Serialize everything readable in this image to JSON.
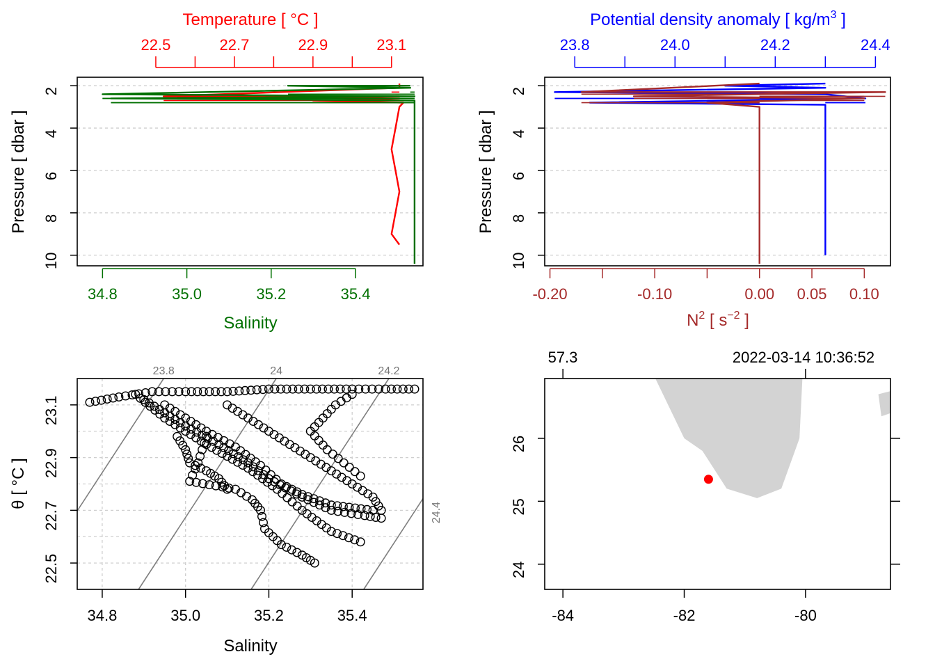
{
  "colors": {
    "temperature": "#ff0000",
    "salinity": "#007000",
    "density": "#0000ff",
    "n2": "#a52a2a",
    "isopycnal": "#7f7f7f",
    "land": "#d3d3d3",
    "station": "#ff0000"
  },
  "chart_data": [
    {
      "type": "line",
      "panel": "profile-TS",
      "title": "",
      "ylabel": "Pressure [ dbar ]",
      "ylim": [
        10.5,
        1.6
      ],
      "yticks": [
        "2",
        "4",
        "6",
        "8",
        "10"
      ],
      "top_axis": {
        "label": "Temperature [ °C ]",
        "range": [
          22.3,
          23.18
        ],
        "ticks": [
          "22.5",
          "22.7",
          "22.9",
          "23.1"
        ],
        "minor_ticks": [
          22.6,
          22.8,
          23.0
        ]
      },
      "bottom_axis": {
        "label": "Salinity",
        "range": [
          34.74,
          35.56
        ],
        "ticks": [
          "34.8",
          "35.0",
          "35.2",
          "35.4"
        ]
      },
      "series": [
        {
          "name": "Temperature",
          "axis": "top",
          "color": "temperature",
          "points": [
            [
              23.12,
              1.9
            ],
            [
              23.12,
              2.1
            ],
            [
              22.52,
              2.5
            ],
            [
              23.12,
              2.6
            ],
            [
              22.9,
              2.7
            ],
            [
              23.13,
              2.8
            ],
            [
              23.12,
              3.0
            ],
            [
              23.11,
              4.0
            ],
            [
              23.1,
              5.0
            ],
            [
              23.11,
              6.0
            ],
            [
              23.12,
              7.0
            ],
            [
              23.11,
              8.0
            ],
            [
              23.1,
              9.0
            ],
            [
              23.12,
              9.5
            ]
          ]
        },
        {
          "name": "Salinity",
          "axis": "bottom",
          "color": "salinity",
          "points": [
            [
              35.53,
              2.0
            ],
            [
              35.24,
              2.0
            ],
            [
              35.53,
              2.1
            ],
            [
              34.8,
              2.4
            ],
            [
              35.54,
              2.5
            ],
            [
              34.82,
              2.6
            ],
            [
              35.54,
              2.7
            ],
            [
              35.54,
              2.8
            ],
            [
              35.54,
              4.0
            ],
            [
              35.54,
              6.0
            ],
            [
              35.54,
              8.0
            ],
            [
              35.54,
              10.4
            ]
          ]
        }
      ]
    },
    {
      "type": "line",
      "panel": "profile-density-N2",
      "title": "",
      "ylabel": "Pressure [ dbar ]",
      "ylim": [
        10.5,
        1.6
      ],
      "yticks": [
        "2",
        "4",
        "6",
        "8",
        "10"
      ],
      "top_axis": {
        "label": "Potential density anomaly [ kg/m",
        "label_sup": "3",
        "label_end": " ]",
        "range": [
          23.74,
          24.43
        ],
        "ticks": [
          "23.8",
          "24.0",
          "24.2",
          "24.4"
        ],
        "minor_ticks": [
          23.9,
          24.1,
          24.3
        ]
      },
      "bottom_axis": {
        "label": "N",
        "label_sup": "2",
        "label_mid": " [ s",
        "label_sup2": "−2",
        "label_end": " ]",
        "range": [
          -0.205,
          0.125
        ],
        "ticks": [
          "-0.20",
          "-0.10",
          "0.00",
          "0.05",
          "0.10"
        ],
        "minor_ticks": [
          -0.15,
          -0.05
        ]
      },
      "series": [
        {
          "name": "Potential density anomaly",
          "axis": "top",
          "color": "density",
          "points": [
            [
              24.3,
              1.9
            ],
            [
              24.1,
              2.0
            ],
            [
              24.3,
              2.1
            ],
            [
              23.76,
              2.3
            ],
            [
              24.3,
              2.4
            ],
            [
              24.38,
              2.6
            ],
            [
              23.83,
              2.8
            ],
            [
              24.3,
              2.9
            ],
            [
              24.3,
              4.0
            ],
            [
              24.3,
              6.0
            ],
            [
              24.3,
              8.0
            ],
            [
              24.3,
              10.0
            ]
          ]
        },
        {
          "name": "N2",
          "axis": "bottom",
          "color": "n2",
          "points": [
            [
              0.0,
              1.9
            ],
            [
              -0.17,
              2.3
            ],
            [
              0.12,
              2.3
            ],
            [
              -0.12,
              2.5
            ],
            [
              0.1,
              2.6
            ],
            [
              -0.05,
              2.8
            ],
            [
              0.0,
              3.0
            ],
            [
              0.0,
              5.0
            ],
            [
              0.0,
              8.0
            ],
            [
              0.0,
              10.4
            ]
          ]
        }
      ]
    },
    {
      "type": "scatter",
      "panel": "TS-diagram",
      "title": "",
      "xlabel": "Salinity",
      "ylabel": "θ [ °C ]",
      "xlim": [
        34.74,
        35.57
      ],
      "ylim": [
        22.4,
        23.2
      ],
      "xticks": [
        "34.8",
        "35.0",
        "35.2",
        "35.4"
      ],
      "yticks": [
        "22.5",
        "22.7",
        "22.9",
        "23.1"
      ],
      "isopycnals": [
        {
          "label": "23.8",
          "sigma": 23.8
        },
        {
          "label": "24",
          "sigma": 24.0
        },
        {
          "label": "24.2",
          "sigma": 24.2
        },
        {
          "label": "24.4",
          "sigma": 24.4
        }
      ],
      "isopycnal_ref": {
        "S": 35.0,
        "T": 23.0,
        "sigma": 23.9,
        "dT_dS": 2.42,
        "d_sigma_dS": 0.74
      },
      "branches": [
        [
          [
            34.77,
            23.11
          ],
          [
            34.84,
            23.13
          ],
          [
            34.92,
            23.15
          ],
          [
            35.0,
            23.15
          ],
          [
            35.1,
            23.15
          ],
          [
            35.2,
            23.16
          ],
          [
            35.3,
            23.16
          ],
          [
            35.4,
            23.16
          ],
          [
            35.48,
            23.16
          ],
          [
            35.55,
            23.16
          ]
        ],
        [
          [
            34.88,
            23.14
          ],
          [
            34.95,
            23.05
          ],
          [
            35.05,
            22.95
          ],
          [
            35.15,
            22.86
          ],
          [
            35.22,
            22.78
          ],
          [
            35.28,
            22.7
          ],
          [
            35.35,
            22.62
          ],
          [
            35.42,
            22.58
          ]
        ],
        [
          [
            34.9,
            23.12
          ],
          [
            35.0,
            23.02
          ],
          [
            35.08,
            22.95
          ],
          [
            35.15,
            22.88
          ],
          [
            35.2,
            22.82
          ],
          [
            35.28,
            22.75
          ],
          [
            35.35,
            22.7
          ],
          [
            35.43,
            22.68
          ],
          [
            35.47,
            22.67
          ]
        ],
        [
          [
            34.95,
            23.1
          ],
          [
            35.05,
            23.0
          ],
          [
            35.12,
            22.94
          ],
          [
            35.18,
            22.87
          ],
          [
            35.23,
            22.8
          ],
          [
            35.28,
            22.76
          ],
          [
            35.35,
            22.72
          ],
          [
            35.45,
            22.7
          ]
        ],
        [
          [
            35.1,
            23.1
          ],
          [
            35.15,
            23.05
          ],
          [
            35.2,
            23.0
          ],
          [
            35.25,
            22.95
          ],
          [
            35.3,
            22.9
          ],
          [
            35.35,
            22.85
          ],
          [
            35.4,
            22.8
          ],
          [
            35.45,
            22.75
          ],
          [
            35.47,
            22.7
          ]
        ],
        [
          [
            35.05,
            22.98
          ],
          [
            35.03,
            22.88
          ],
          [
            35.01,
            22.81
          ],
          [
            35.12,
            22.78
          ],
          [
            35.16,
            22.74
          ],
          [
            35.18,
            22.7
          ],
          [
            35.19,
            22.63
          ],
          [
            35.23,
            22.57
          ],
          [
            35.28,
            22.53
          ],
          [
            35.31,
            22.5
          ]
        ],
        [
          [
            35.4,
            23.14
          ],
          [
            35.36,
            23.1
          ],
          [
            35.33,
            23.05
          ],
          [
            35.3,
            23.0
          ],
          [
            35.34,
            22.93
          ],
          [
            35.38,
            22.88
          ],
          [
            35.42,
            22.83
          ]
        ],
        [
          [
            34.98,
            22.98
          ],
          [
            35.0,
            22.93
          ],
          [
            35.01,
            22.88
          ],
          [
            35.05,
            22.85
          ],
          [
            35.08,
            22.82
          ],
          [
            35.1,
            22.78
          ]
        ]
      ]
    },
    {
      "type": "scatter",
      "panel": "map",
      "title": "",
      "top_labels": [
        "57.3",
        "2022-03-14 10:36:52"
      ],
      "xlim": [
        -84.3,
        -78.6
      ],
      "ylim": [
        23.6,
        26.95
      ],
      "xticks": [
        "-84",
        "-82",
        "-80"
      ],
      "yticks": [
        "24",
        "25",
        "26"
      ],
      "land": [
        [
          [
            -82.5,
            27.0
          ],
          [
            -82.0,
            26.0
          ],
          [
            -81.7,
            25.8
          ],
          [
            -81.3,
            25.2
          ],
          [
            -80.8,
            25.05
          ],
          [
            -80.4,
            25.2
          ],
          [
            -80.1,
            26.0
          ],
          [
            -80.05,
            27.0
          ]
        ],
        [
          [
            -78.8,
            26.7
          ],
          [
            -78.6,
            26.75
          ],
          [
            -78.6,
            26.4
          ],
          [
            -78.75,
            26.35
          ]
        ]
      ],
      "station": {
        "lon": -81.6,
        "lat": 25.35
      }
    }
  ]
}
